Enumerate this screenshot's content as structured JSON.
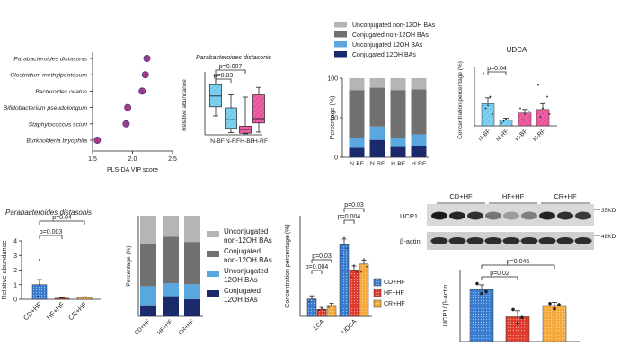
{
  "chart_data": [
    {
      "id": "vip",
      "type": "scatter",
      "xlabel": "PLS-DA VIP score",
      "xlim": [
        1.5,
        2.5
      ],
      "xticks": [
        "1.5",
        "2.0",
        "2.5"
      ],
      "categories": [
        "Parabacteroides distasonis",
        "Clostridium methylpentosum",
        "Bacteroides ovatus",
        "Bifidobacterium pseudolongum",
        "Staphylococcus sciuri",
        "Burkholderia bryophila"
      ],
      "values": [
        2.18,
        2.16,
        2.12,
        1.94,
        1.92,
        1.56
      ],
      "colors": [
        "#b83a7e",
        "#4b3a8f"
      ]
    },
    {
      "id": "pd_box",
      "type": "box",
      "title": "Parabacteroides distasonis",
      "ylabel": "Relative abundance",
      "categories": [
        "N-BF",
        "N-RF",
        "H-BF",
        "H-RF"
      ],
      "ylim": [
        0,
        11
      ],
      "boxes": [
        {
          "min": 3.5,
          "q1": 5.2,
          "median": 7.2,
          "q3": 9.3,
          "max": 11.0
        },
        {
          "min": 0.4,
          "q1": 1.2,
          "median": 2.8,
          "q3": 5.0,
          "max": 7.4
        },
        {
          "min": 0.2,
          "q1": 0.3,
          "median": 1.0,
          "q3": 1.6,
          "max": 7.0
        },
        {
          "min": 0.5,
          "q1": 2.2,
          "median": 3.0,
          "q3": 7.4,
          "max": 8.8
        }
      ],
      "colors": [
        "#5fc3ea",
        "#5fc3ea",
        "#e8408c",
        "#e8408c"
      ],
      "annotations": [
        "p=0.007",
        "p=0.03"
      ]
    },
    {
      "id": "ba_top",
      "type": "bar",
      "stacked": true,
      "ylabel": "Percentage (%)",
      "categories": [
        "N-BF",
        "N-RF",
        "H-BF",
        "H-RF"
      ],
      "ylim": [
        0,
        100
      ],
      "yticks": [
        "0",
        "50",
        "100"
      ],
      "legend": [
        "Unconjugated non-12OH BAs",
        "Conjugated non-12OH BAs",
        "Unconjugated 12OH BAs",
        "Conjugated 12OH BAs"
      ],
      "series": [
        {
          "name": "Conjugated 12OH BAs",
          "color": "#1a2a6b",
          "values": [
            12,
            22,
            13,
            14
          ]
        },
        {
          "name": "Unconjugated 12OH BAs",
          "color": "#5aa7e0",
          "values": [
            12,
            17,
            12,
            15
          ]
        },
        {
          "name": "Conjugated non-12OH BAs",
          "color": "#707070",
          "values": [
            61,
            49,
            60,
            57
          ]
        },
        {
          "name": "Unconjugated non-12OH BAs",
          "color": "#b5b5b5",
          "values": [
            15,
            12,
            15,
            14
          ]
        }
      ]
    },
    {
      "id": "udca_top",
      "type": "bar",
      "title": "UDCA",
      "ylabel": "Concentration percentage (%)",
      "categories": [
        "N-BF",
        "N-RF",
        "H-BF",
        "H-RF"
      ],
      "ylim": [
        0,
        1.0
      ],
      "values": [
        0.38,
        0.1,
        0.22,
        0.28
      ],
      "errors": [
        0.1,
        0.03,
        0.06,
        0.1
      ],
      "colors": [
        "#5fc3ea",
        "#5fc3ea",
        "#e8408c",
        "#e8408c"
      ],
      "annotations": [
        "p=0.04"
      ]
    },
    {
      "id": "pd_bar",
      "type": "bar",
      "title": "Parabacteroides distasonis",
      "ylabel": "Relative abundance",
      "categories": [
        "CD+HF",
        "HF+HF",
        "CR+HF"
      ],
      "ylim": [
        0,
        4
      ],
      "yticks": [
        "0",
        "1",
        "2",
        "3",
        "4"
      ],
      "values": [
        1.0,
        0.07,
        0.12
      ],
      "errors": [
        0.35,
        0.03,
        0.05
      ],
      "colors": [
        "#3a7cd0",
        "#e23b2e",
        "#f4a93a"
      ],
      "annotations": [
        "p=0.04",
        "p=0.003"
      ]
    },
    {
      "id": "ba_bottom",
      "type": "bar",
      "stacked": true,
      "ylabel": "Percentage (%)",
      "categories": [
        "CD+HF",
        "HF+HF",
        "CR+HF"
      ],
      "ylim": [
        0,
        100
      ],
      "legend": [
        "Unconjugated non-12OH BAs",
        "Conjugated non-12OH BAs",
        "Unconjugated 12OH BAs",
        "Conjugated 12OH BAs"
      ],
      "series": [
        {
          "name": "Conjugated 12OH BAs",
          "color": "#1a2a6b",
          "values": [
            11,
            20,
            17
          ]
        },
        {
          "name": "Unconjugated 12OH BAs",
          "color": "#5aa7e0",
          "values": [
            19,
            13,
            15
          ]
        },
        {
          "name": "Conjugated non-12OH BAs",
          "color": "#707070",
          "values": [
            42,
            46,
            42
          ]
        },
        {
          "name": "Unconjugated non-12OH BAs",
          "color": "#b5b5b5",
          "values": [
            28,
            21,
            26
          ]
        }
      ]
    },
    {
      "id": "lca_udca",
      "type": "bar",
      "ylabel": "Concentration percentage (%)",
      "categories": [
        "LCA",
        "UDCA"
      ],
      "legend": [
        "CD+HF",
        "HF+HF",
        "CR+HF"
      ],
      "ylim": [
        0,
        2.6
      ],
      "series": [
        {
          "name": "CD+HF",
          "color": "#3a7cd0",
          "values": [
            0.45,
            1.85
          ],
          "errors": [
            0.08,
            0.15
          ]
        },
        {
          "name": "HF+HF",
          "color": "#e23b2e",
          "values": [
            0.18,
            1.2
          ],
          "errors": [
            0.05,
            0.1
          ]
        },
        {
          "name": "CR+HF",
          "color": "#f4a93a",
          "values": [
            0.28,
            1.35
          ],
          "errors": [
            0.06,
            0.1
          ]
        }
      ],
      "annotations_lca": [
        "p=0.03",
        "p=0.004"
      ],
      "annotations_udca": [
        "p=0.03",
        "p=0.004"
      ]
    },
    {
      "id": "ucp1",
      "type": "bar",
      "ylabel": "UCP1/ β-actin",
      "categories": [
        "CD+HF",
        "HF+HF",
        "CR+HF"
      ],
      "ylim": [
        0,
        1.8
      ],
      "values": [
        1.3,
        0.62,
        0.9
      ],
      "errors": [
        0.12,
        0.15,
        0.08
      ],
      "colors": [
        "#3a7cd0",
        "#e23b2e",
        "#f4a93a"
      ],
      "annotations": [
        "p=0.046",
        "p=0.02"
      ]
    }
  ],
  "blot": {
    "groups": [
      "CD+HF",
      "HF+HF",
      "CR+HF"
    ],
    "rows": [
      "UCP1",
      "β-actin"
    ],
    "markers": [
      "35KD",
      "48KD"
    ]
  }
}
